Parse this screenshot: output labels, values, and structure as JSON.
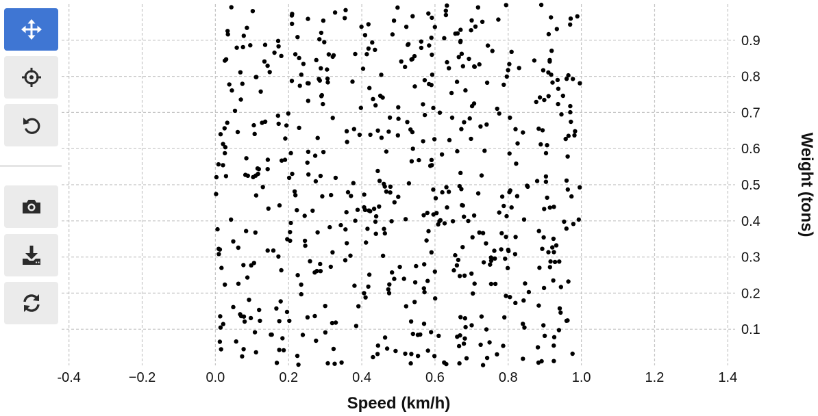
{
  "toolbar": {
    "tools": [
      {
        "name": "pan-tool",
        "icon": "move-arrows-icon",
        "active": true
      },
      {
        "name": "crosshair-tool",
        "icon": "crosshair-icon",
        "active": false
      },
      {
        "name": "reset-tool",
        "icon": "undo-icon",
        "active": false
      }
    ],
    "actions": [
      {
        "name": "screenshot",
        "icon": "camera-icon"
      },
      {
        "name": "download",
        "icon": "download-icon"
      },
      {
        "name": "refresh",
        "icon": "refresh-icon"
      }
    ],
    "active_color": "#3f76d3",
    "button_color": "#ebebeb"
  },
  "chart_data": {
    "type": "scatter",
    "title": "",
    "xlabel": "Speed (km/h)",
    "ylabel": "Weight (tons)",
    "xlim": [
      -0.42,
      1.42
    ],
    "ylim": [
      0.0,
      1.0
    ],
    "x_ticks": [
      -0.4,
      -0.2,
      0.0,
      0.2,
      0.4,
      0.6,
      0.8,
      1.0,
      1.2,
      1.4
    ],
    "x_tick_labels": [
      "-0.4",
      "−0.2",
      "0.0",
      "0.2",
      "0.4",
      "0.6",
      "0.8",
      "1.0",
      "1.2",
      "1.4"
    ],
    "y_ticks": [
      0.1,
      0.2,
      0.3,
      0.4,
      0.5,
      0.6,
      0.7,
      0.8,
      0.9
    ],
    "y_tick_labels": [
      "0.1",
      "0.2",
      "0.3",
      "0.4",
      "0.5",
      "0.6",
      "0.7",
      "0.8",
      "0.9"
    ],
    "y_axis_side": "right",
    "grid": true,
    "marker_color": "#000000",
    "point_count": 600,
    "x_range": [
      0.0,
      1.0
    ],
    "y_range": [
      0.0,
      1.0
    ]
  }
}
